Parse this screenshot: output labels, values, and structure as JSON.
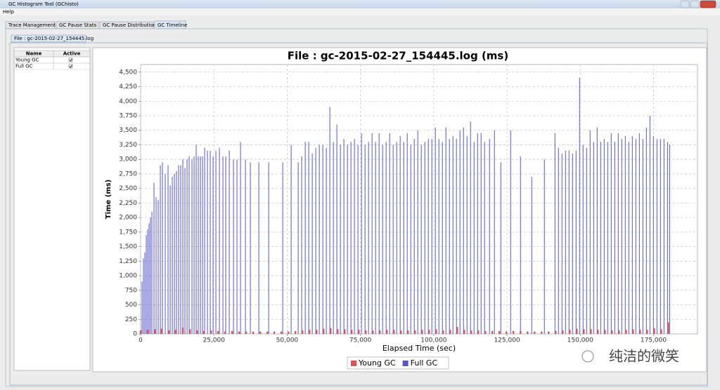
{
  "window": {
    "title": "GC Histogram Tool (GChisto)",
    "menu": [
      "Help"
    ],
    "tabs": [
      "Trace Management",
      "GC Pause Stats",
      "GC Pause Distribution",
      "GC Timeline"
    ],
    "selected_tab": 3,
    "file_tab": "File : gc-2015-02-27_154445.log"
  },
  "table": {
    "header": [
      "Name",
      "Active"
    ],
    "rows": [
      [
        "Young GC",
        true
      ],
      [
        "Full GC",
        true
      ]
    ]
  },
  "watermark": "纯洁的微笑",
  "chart_data": {
    "type": "spike",
    "title": "File : gc-2015-02-27_154445.log (ms)",
    "x_label": "Elapsed Time (sec)",
    "y_label": "Time (ms)",
    "xlim": [
      0,
      190000
    ],
    "ylim": [
      0,
      4630
    ],
    "xticks": [
      0,
      {
        "value": 25000,
        "label": "25,000"
      },
      {
        "value": 50000,
        "label": "50,000"
      },
      {
        "value": 75000,
        "label": "75,000"
      },
      {
        "value": 100000,
        "label": "100,000"
      },
      {
        "value": 125000,
        "label": "125,000"
      },
      {
        "value": 150000,
        "label": "150,000"
      },
      {
        "value": 175000,
        "label": "175,000"
      }
    ],
    "yticks": [
      0,
      250,
      500,
      750,
      {
        "value": 1000,
        "label": "1,000"
      },
      {
        "value": 1250,
        "label": "1,250"
      },
      {
        "value": 1500,
        "label": "1,500"
      },
      {
        "value": 1750,
        "label": "1,750"
      },
      {
        "value": 2000,
        "label": "2,000"
      },
      {
        "value": 2250,
        "label": "2,250"
      },
      {
        "value": 2500,
        "label": "2,500"
      },
      {
        "value": 2750,
        "label": "2,750"
      },
      {
        "value": 3000,
        "label": "3,000"
      },
      {
        "value": 3250,
        "label": "3,250"
      },
      {
        "value": 3500,
        "label": "3,500"
      },
      {
        "value": 3750,
        "label": "3,750"
      },
      {
        "value": 4000,
        "label": "4,000"
      },
      {
        "value": 4250,
        "label": "4,250"
      },
      {
        "value": 4500,
        "label": "4,500"
      }
    ],
    "grid": true,
    "series": [
      {
        "name": "Full GC",
        "color": "#5555cc",
        "x": [
          480,
          960,
          1440,
          1920,
          2400,
          2880,
          3360,
          3840,
          4560,
          5280,
          6000,
          6720,
          7440,
          8400,
          9360,
          10080,
          10800,
          11520,
          12240,
          12960,
          13680,
          14400,
          15120,
          15840,
          16560,
          17520,
          18240,
          18960,
          19680,
          20400,
          21120,
          21840,
          22800,
          23760,
          24720,
          25680,
          26880,
          28080,
          29040,
          30240,
          31680,
          32880,
          34080,
          35760,
          37440,
          40320,
          43680,
          48480,
          51360,
          53760,
          54960,
          56160,
          57360,
          58560,
          59760,
          60960,
          62160,
          63360,
          64560,
          65760,
          66960,
          68160,
          69360,
          70560,
          71760,
          72960,
          74160,
          75360,
          76560,
          77760,
          78960,
          80160,
          81360,
          82560,
          83760,
          84960,
          86160,
          87360,
          88560,
          89760,
          90960,
          92160,
          93360,
          94560,
          95760,
          96960,
          98160,
          99360,
          100560,
          101760,
          102960,
          104160,
          105360,
          106560,
          107760,
          108960,
          110160,
          111360,
          112560,
          113760,
          114960,
          116160,
          117360,
          119040,
          120720,
          122880,
          126240,
          129600,
          133440,
          137760,
          141360,
          142560,
          143760,
          144960,
          146160,
          147360,
          148560,
          149760,
          150960,
          152160,
          153360,
          154560,
          155760,
          156960,
          158160,
          159360,
          160560,
          161760,
          162960,
          164160,
          165360,
          166560,
          167760,
          168960,
          170160,
          171360,
          172560,
          173760,
          174960,
          176160,
          177360,
          178560,
          179760,
          180480
        ],
        "values": [
          900,
          1300,
          1400,
          1700,
          1800,
          1900,
          2000,
          2100,
          2600,
          2350,
          2300,
          2900,
          2950,
          2750,
          2900,
          2550,
          2700,
          2750,
          2800,
          2900,
          2900,
          3000,
          2850,
          3000,
          3050,
          3000,
          3050,
          3250,
          3050,
          3050,
          3050,
          3200,
          3150,
          3150,
          3050,
          3150,
          3200,
          3050,
          3050,
          3150,
          3000,
          3000,
          3300,
          3000,
          2950,
          2950,
          2950,
          2950,
          3250,
          2950,
          3050,
          3300,
          3300,
          3100,
          3200,
          3250,
          3250,
          3200,
          3900,
          3300,
          3600,
          3250,
          3350,
          3250,
          3300,
          3350,
          3250,
          3450,
          3250,
          3300,
          3450,
          3300,
          3450,
          3250,
          3300,
          3450,
          3250,
          3300,
          3400,
          3300,
          3450,
          3250,
          3350,
          3500,
          3250,
          3300,
          3350,
          3350,
          3550,
          3350,
          3300,
          3550,
          3350,
          3400,
          3350,
          3500,
          3550,
          3400,
          3650,
          3300,
          3450,
          3450,
          3300,
          3350,
          3500,
          2950,
          3500,
          3050,
          2700,
          3000,
          3450,
          3200,
          3100,
          3150,
          3150,
          3100,
          3150,
          4400,
          3250,
          3200,
          3500,
          3300,
          3550,
          3300,
          3350,
          3300,
          3450,
          3300,
          3450,
          3350,
          3400,
          3300,
          3400,
          3350,
          3450,
          3350,
          3550,
          3750,
          3400,
          3350,
          3350,
          3350,
          3300,
          3250
        ]
      },
      {
        "name": "Young GC",
        "color": "#e05050",
        "x": [
          0,
          2400,
          4800,
          7200,
          9600,
          12000,
          14400,
          16800,
          19200,
          21600,
          24000,
          26400,
          28800,
          31200,
          33600,
          36000,
          38400,
          40800,
          43200,
          45600,
          48000,
          50400,
          52800,
          55200,
          57600,
          60000,
          62400,
          64800,
          67200,
          69600,
          72000,
          74400,
          76800,
          79200,
          81600,
          84000,
          86400,
          88800,
          91200,
          93600,
          96000,
          98400,
          100800,
          103200,
          105600,
          108000,
          110400,
          112800,
          115200,
          117600,
          120000,
          122400,
          124800,
          127200,
          129600,
          132000,
          134400,
          136800,
          139200,
          141600,
          144000,
          146400,
          148800,
          151200,
          153600,
          156000,
          158400,
          160800,
          163200,
          165600,
          168000,
          170400,
          172800,
          175200,
          177600,
          180000
        ],
        "values": [
          60,
          70,
          80,
          90,
          60,
          70,
          110,
          80,
          60,
          50,
          60,
          50,
          40,
          50,
          40,
          40,
          40,
          40,
          40,
          40,
          40,
          40,
          50,
          60,
          70,
          70,
          90,
          100,
          80,
          80,
          70,
          70,
          60,
          60,
          60,
          70,
          70,
          60,
          60,
          60,
          70,
          70,
          80,
          60,
          70,
          120,
          70,
          60,
          60,
          50,
          50,
          50,
          40,
          50,
          50,
          40,
          40,
          40,
          40,
          50,
          60,
          70,
          90,
          80,
          80,
          70,
          70,
          60,
          60,
          70,
          80,
          70,
          70,
          100,
          80,
          200
        ]
      }
    ],
    "legend": "bottom"
  }
}
